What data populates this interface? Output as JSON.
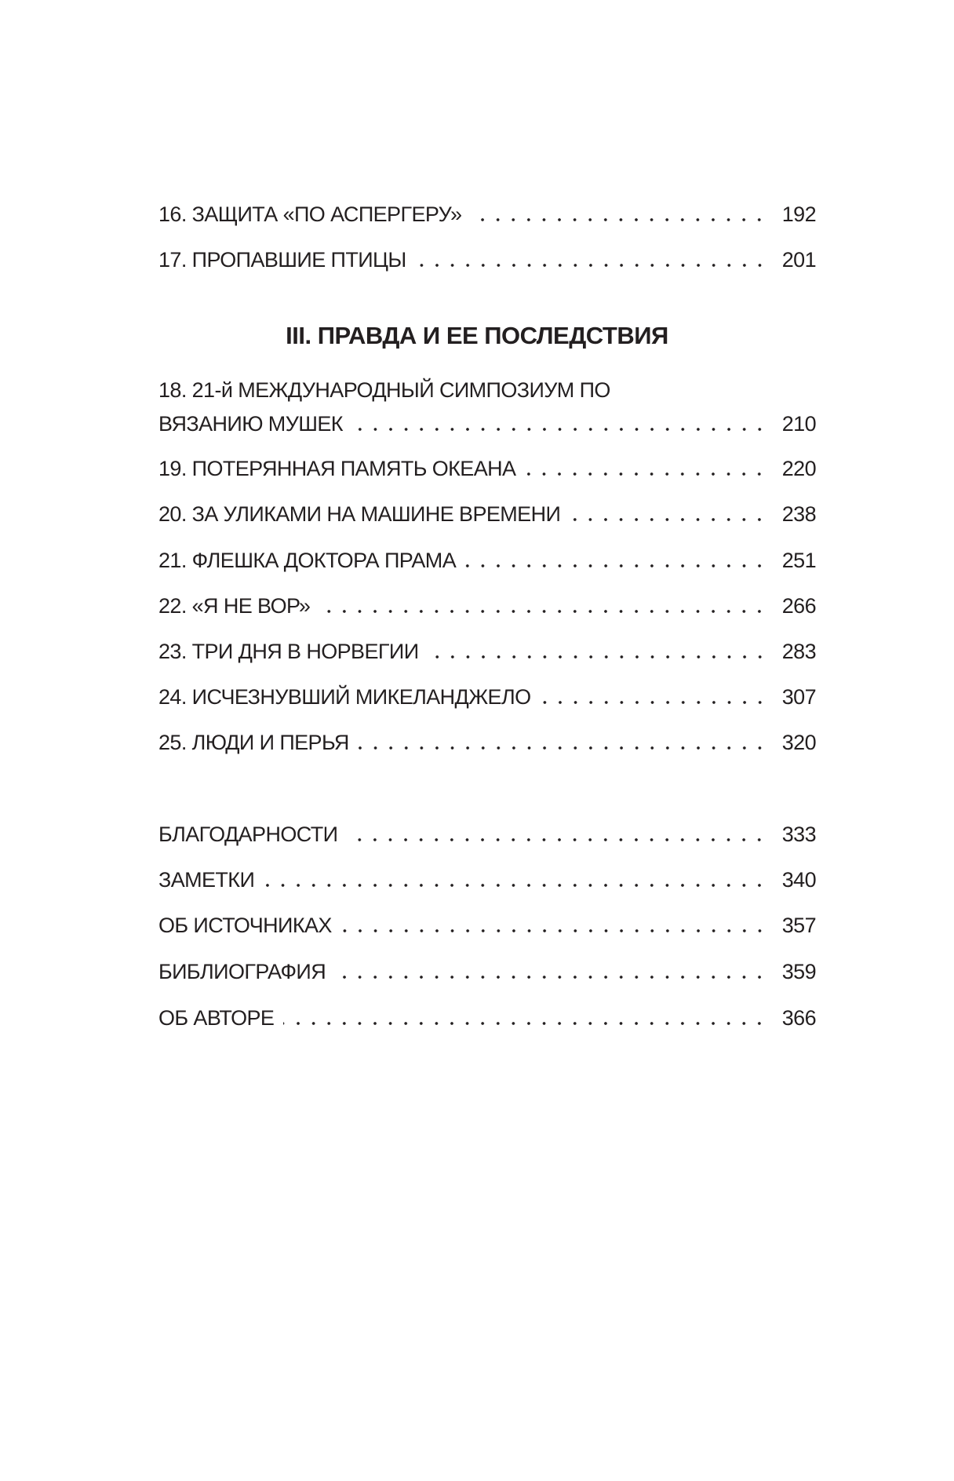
{
  "entries_before": [
    {
      "title": "16. ЗАЩИТА «ПО АСПЕРГЕРУ»",
      "page": "192"
    },
    {
      "title": "17. ПРОПАВШИЕ ПТИЦЫ",
      "page": "201"
    }
  ],
  "section_heading": "III. ПРАВДА И ЕЕ ПОСЛЕДСТВИЯ",
  "entry_18": {
    "title_line1": "18. 21-й МЕЖДУНАРОДНЫЙ СИМПОЗИУМ ПО",
    "title_line2": "ВЯЗАНИЮ МУШЕК",
    "page": "210"
  },
  "entries": [
    {
      "title": "19. ПОТЕРЯННАЯ ПАМЯТЬ ОКЕАНА",
      "page": "220"
    },
    {
      "title": "20. ЗА УЛИКАМИ НА МАШИНЕ ВРЕМЕНИ",
      "page": "238"
    },
    {
      "title": "21. ФЛЕШКА ДОКТОРА ПРАМА",
      "page": "251"
    },
    {
      "title": "22. «Я НЕ ВОР»",
      "page": "266"
    },
    {
      "title": "23. ТРИ ДНЯ В НОРВЕГИИ",
      "page": "283"
    },
    {
      "title": "24. ИСЧЕЗНУВШИЙ МИКЕЛАНДЖЕЛО",
      "page": "307"
    },
    {
      "title": "25. ЛЮДИ И ПЕРЬЯ",
      "page": "320"
    }
  ],
  "back_matter": [
    {
      "title": "БЛАГОДАРНОСТИ",
      "page": "333"
    },
    {
      "title": "ЗАМЕТКИ",
      "page": "340"
    },
    {
      "title": "ОБ ИСТОЧНИКАХ",
      "page": "357"
    },
    {
      "title": "БИБЛИОГРАФИЯ",
      "page": "359"
    },
    {
      "title": "ОБ АВТОРЕ",
      "page": "366"
    }
  ]
}
